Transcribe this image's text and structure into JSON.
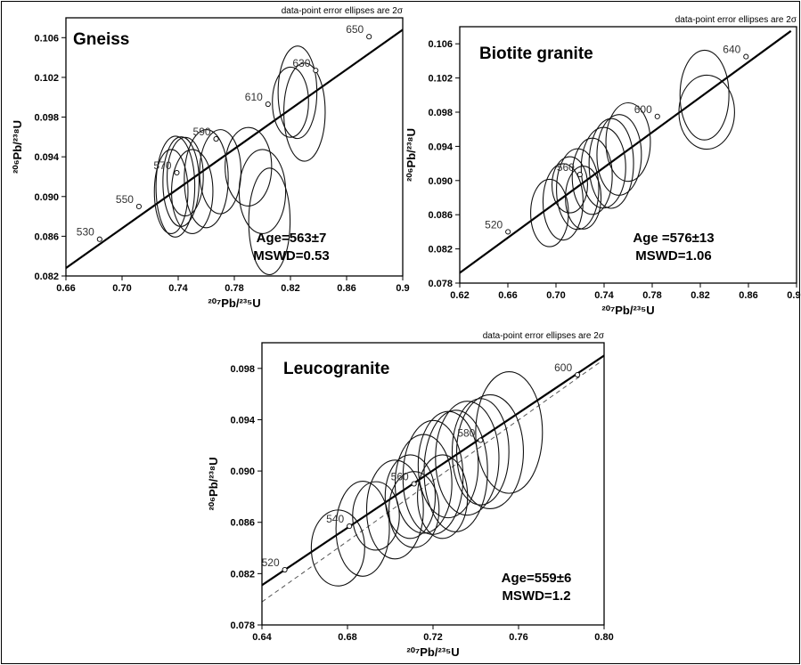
{
  "chart_data": [
    {
      "type": "concordia",
      "title": "Gneiss",
      "note": "data-point error ellipses are 2σ",
      "xlabel": "²⁰⁷Pb/²³⁵U",
      "ylabel": "²⁰⁶Pb/²³⁸U",
      "xlim": [
        0.66,
        0.9
      ],
      "ylim": [
        0.082,
        0.108
      ],
      "xticks": [
        "0.66",
        "0.70",
        "0.74",
        "0.78",
        "0.82",
        "0.86",
        "0.9"
      ],
      "yticks": [
        "0.082",
        "0.086",
        "0.090",
        "0.094",
        "0.098",
        "0.102",
        "0.106"
      ],
      "concordia": [
        [
          0.66,
          0.0828
        ],
        [
          0.9,
          0.1068
        ]
      ],
      "age_markers": [
        {
          "label": "530",
          "x": 0.684,
          "y": 0.0857
        },
        {
          "label": "550",
          "x": 0.712,
          "y": 0.089
        },
        {
          "label": "570",
          "x": 0.739,
          "y": 0.0924
        },
        {
          "label": "590",
          "x": 0.767,
          "y": 0.0958
        },
        {
          "label": "610",
          "x": 0.804,
          "y": 0.0993
        },
        {
          "label": "630",
          "x": 0.838,
          "y": 0.1027
        },
        {
          "label": "650",
          "x": 0.876,
          "y": 0.1061
        }
      ],
      "ellipses": [
        {
          "x": 0.738,
          "y": 0.091,
          "rx": 0.036,
          "ry": 0.0015,
          "angle": 0.0044
        },
        {
          "x": 0.742,
          "y": 0.0915,
          "rx": 0.032,
          "ry": 0.0014,
          "angle": 0.0046
        },
        {
          "x": 0.735,
          "y": 0.0905,
          "rx": 0.03,
          "ry": 0.0013,
          "angle": 0.0044
        },
        {
          "x": 0.745,
          "y": 0.092,
          "rx": 0.028,
          "ry": 0.0014,
          "angle": 0.0045
        },
        {
          "x": 0.76,
          "y": 0.0918,
          "rx": 0.035,
          "ry": 0.0017,
          "angle": 0.0042
        },
        {
          "x": 0.75,
          "y": 0.0905,
          "rx": 0.03,
          "ry": 0.0016,
          "angle": 0.004
        },
        {
          "x": 0.77,
          "y": 0.0925,
          "rx": 0.03,
          "ry": 0.0016,
          "angle": 0.0045
        },
        {
          "x": 0.79,
          "y": 0.093,
          "rx": 0.028,
          "ry": 0.0018,
          "angle": 0.0042
        },
        {
          "x": 0.8,
          "y": 0.0905,
          "rx": 0.03,
          "ry": 0.0018,
          "angle": 0.004
        },
        {
          "x": 0.805,
          "y": 0.0875,
          "rx": 0.038,
          "ry": 0.0016,
          "angle": 0.0036
        },
        {
          "x": 0.83,
          "y": 0.0985,
          "rx": 0.035,
          "ry": 0.0016,
          "angle": 0.0045
        },
        {
          "x": 0.825,
          "y": 0.1005,
          "rx": 0.033,
          "ry": 0.0015,
          "angle": 0.0045
        },
        {
          "x": 0.82,
          "y": 0.0995,
          "rx": 0.025,
          "ry": 0.0014,
          "angle": 0.0043
        }
      ],
      "age": "Age=563±7",
      "mswd": "MSWD=0.53",
      "age_line": 0,
      "dashed": false
    },
    {
      "type": "concordia",
      "title": "Biotite granite",
      "note": "data-point error ellipses are 2σ",
      "xlabel": "²⁰⁷Pb/²³⁵U",
      "ylabel": "²⁰⁶Pb/²³⁸U",
      "xlim": [
        0.62,
        0.92
      ],
      "ylim": [
        0.078,
        0.108
      ],
      "xticks": [
        "0.62",
        "0.66",
        "0.70",
        "0.74",
        "0.78",
        "0.82",
        "0.86",
        "0.90"
      ],
      "yticks": [
        "0.078",
        "0.082",
        "0.086",
        "0.090",
        "0.094",
        "0.098",
        "0.102",
        "0.106"
      ],
      "concordia": [
        [
          0.62,
          0.0792
        ],
        [
          0.915,
          0.1075
        ]
      ],
      "age_markers": [
        {
          "label": "520",
          "x": 0.663,
          "y": 0.084
        },
        {
          "label": "560",
          "x": 0.727,
          "y": 0.0907
        },
        {
          "label": "600",
          "x": 0.796,
          "y": 0.0975
        },
        {
          "label": "640",
          "x": 0.875,
          "y": 0.1045
        }
      ],
      "ellipses": [
        {
          "x": 0.7,
          "y": 0.0862,
          "rx": 0.03,
          "ry": 0.0017,
          "angle": 0.005
        },
        {
          "x": 0.712,
          "y": 0.0875,
          "rx": 0.034,
          "ry": 0.0018,
          "angle": 0.005
        },
        {
          "x": 0.725,
          "y": 0.089,
          "rx": 0.036,
          "ry": 0.0019,
          "angle": 0.005
        },
        {
          "x": 0.738,
          "y": 0.0905,
          "rx": 0.034,
          "ry": 0.0018,
          "angle": 0.005
        },
        {
          "x": 0.748,
          "y": 0.0915,
          "rx": 0.036,
          "ry": 0.002,
          "angle": 0.005
        },
        {
          "x": 0.755,
          "y": 0.092,
          "rx": 0.04,
          "ry": 0.002,
          "angle": 0.005
        },
        {
          "x": 0.762,
          "y": 0.093,
          "rx": 0.036,
          "ry": 0.002,
          "angle": 0.005
        },
        {
          "x": 0.73,
          "y": 0.088,
          "rx": 0.028,
          "ry": 0.0016,
          "angle": 0.005
        },
        {
          "x": 0.718,
          "y": 0.0895,
          "rx": 0.025,
          "ry": 0.0016,
          "angle": 0.005
        },
        {
          "x": 0.77,
          "y": 0.0945,
          "rx": 0.035,
          "ry": 0.002,
          "angle": 0.005
        },
        {
          "x": 0.838,
          "y": 0.1,
          "rx": 0.04,
          "ry": 0.0022,
          "angle": 0.005
        },
        {
          "x": 0.84,
          "y": 0.098,
          "rx": 0.033,
          "ry": 0.0025,
          "angle": 0.005
        }
      ],
      "age": "Age =576±13",
      "mswd": "MSWD=1.06",
      "age_line": 0,
      "dashed": false
    },
    {
      "type": "concordia",
      "title": "Leucogranite",
      "note": "data-point error ellipses are 2σ",
      "xlabel": "²⁰⁷Pb/²³⁵U",
      "ylabel": "²⁰⁶Pb/²³⁸U",
      "xlim": [
        0.64,
        0.82
      ],
      "ylim": [
        0.078,
        0.1
      ],
      "xticks": [
        "0.64",
        "0.68",
        "0.72",
        "0.76",
        "0.80"
      ],
      "yticks": [
        "0.078",
        "0.082",
        "0.086",
        "0.090",
        "0.094",
        "0.098"
      ],
      "concordia": [
        [
          0.64,
          0.0811
        ],
        [
          0.82,
          0.099
        ]
      ],
      "dashed_line": [
        [
          0.64,
          0.0798
        ],
        [
          0.818,
          0.0985
        ]
      ],
      "age_markers": [
        {
          "label": "520",
          "x": 0.652,
          "y": 0.0823
        },
        {
          "label": "540",
          "x": 0.686,
          "y": 0.0857
        },
        {
          "label": "560",
          "x": 0.72,
          "y": 0.089
        },
        {
          "label": "580",
          "x": 0.755,
          "y": 0.0924
        },
        {
          "label": "600",
          "x": 0.806,
          "y": 0.0975
        }
      ],
      "ellipses": [
        {
          "x": 0.693,
          "y": 0.0855,
          "rx": 0.025,
          "ry": 0.0016,
          "angle": 0.005
        },
        {
          "x": 0.71,
          "y": 0.087,
          "rx": 0.026,
          "ry": 0.0017,
          "angle": 0.005
        },
        {
          "x": 0.718,
          "y": 0.088,
          "rx": 0.022,
          "ry": 0.0015,
          "angle": 0.005
        },
        {
          "x": 0.725,
          "y": 0.089,
          "rx": 0.026,
          "ry": 0.0017,
          "angle": 0.005
        },
        {
          "x": 0.73,
          "y": 0.0895,
          "rx": 0.03,
          "ry": 0.0018,
          "angle": 0.005
        },
        {
          "x": 0.738,
          "y": 0.0905,
          "rx": 0.028,
          "ry": 0.0018,
          "angle": 0.005
        },
        {
          "x": 0.742,
          "y": 0.09,
          "rx": 0.032,
          "ry": 0.0019,
          "angle": 0.005
        },
        {
          "x": 0.748,
          "y": 0.091,
          "rx": 0.03,
          "ry": 0.0019,
          "angle": 0.005
        },
        {
          "x": 0.755,
          "y": 0.0915,
          "rx": 0.028,
          "ry": 0.0017,
          "angle": 0.005
        },
        {
          "x": 0.76,
          "y": 0.0915,
          "rx": 0.03,
          "ry": 0.002,
          "angle": 0.005
        },
        {
          "x": 0.72,
          "y": 0.087,
          "rx": 0.02,
          "ry": 0.0015,
          "angle": 0.005
        },
        {
          "x": 0.7,
          "y": 0.0865,
          "rx": 0.018,
          "ry": 0.0014,
          "angle": 0.005
        },
        {
          "x": 0.735,
          "y": 0.088,
          "rx": 0.022,
          "ry": 0.0015,
          "angle": 0.005
        },
        {
          "x": 0.77,
          "y": 0.093,
          "rx": 0.032,
          "ry": 0.002,
          "angle": 0.005
        },
        {
          "x": 0.68,
          "y": 0.084,
          "rx": 0.02,
          "ry": 0.0016,
          "angle": 0.005
        }
      ],
      "age": "Age=559±6",
      "mswd": "MSWD=1.2",
      "age_line": 0,
      "dashed": true
    }
  ]
}
